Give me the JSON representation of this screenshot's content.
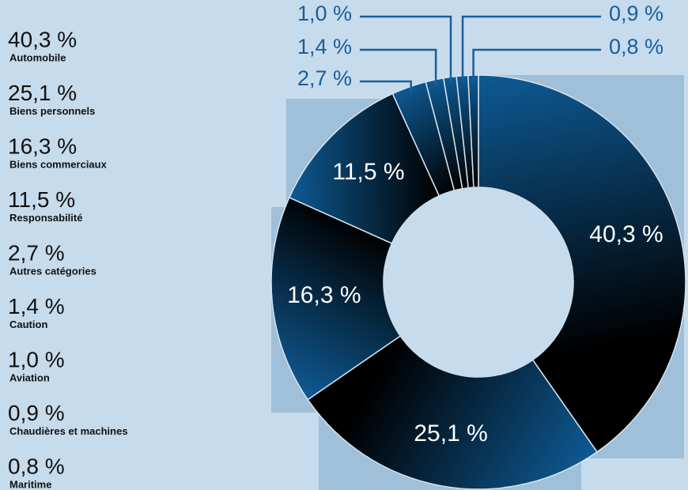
{
  "chart_data": {
    "type": "pie",
    "donut": true,
    "categories": [
      "Automobile",
      "Biens personnels",
      "Biens commerciaux",
      "Responsabilité",
      "Autres catégories",
      "Caution",
      "Aviation",
      "Chaudières et machines",
      "Maritime"
    ],
    "values": [
      40.3,
      25.1,
      16.3,
      11.5,
      2.7,
      1.4,
      1.0,
      0.9,
      0.8
    ],
    "value_labels": [
      "40,3 %",
      "25,1 %",
      "16,3 %",
      "11,5 %",
      "2,7 %",
      "1,4 %",
      "1,0 %",
      "0,9 %",
      "0,8 %"
    ],
    "color": "#0e5a94"
  }
}
